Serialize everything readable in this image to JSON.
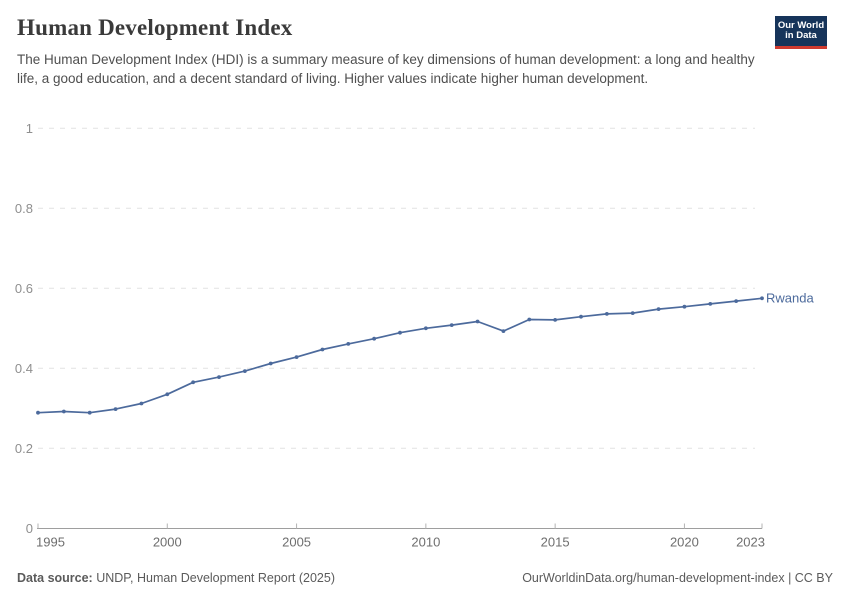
{
  "header": {
    "title": "Human Development Index",
    "subtitle": "The Human Development Index (HDI) is a summary measure of key dimensions of human development: a long and healthy life, a good education, and a decent standard of living. Higher values indicate higher human development.",
    "logo": {
      "line1": "Our World",
      "line2": "in Data"
    }
  },
  "footer": {
    "source_label": "Data source:",
    "source_text": " UNDP, Human Development Report (2025)",
    "citation": "OurWorldinData.org/human-development-index | CC BY"
  },
  "colors": {
    "series": "#4c6a9c",
    "gridline": "#e2e2e2",
    "y_tick_label": "#8f8f8f",
    "x_tick_label": "#6e6e6e",
    "axis_line": "#9e9e9e",
    "tick_mark": "#b3b3b3",
    "logo_navy": "#16345a",
    "logo_red": "#cf3a2f"
  },
  "chart_data": {
    "type": "line",
    "title": "Human Development Index",
    "xlabel": "",
    "ylabel": "",
    "x": [
      1995,
      1996,
      1997,
      1998,
      1999,
      2000,
      2001,
      2002,
      2003,
      2004,
      2005,
      2006,
      2007,
      2008,
      2009,
      2010,
      2011,
      2012,
      2013,
      2014,
      2015,
      2016,
      2017,
      2018,
      2019,
      2020,
      2021,
      2022,
      2023
    ],
    "series": [
      {
        "name": "Rwanda",
        "color": "#4c6a9c",
        "values": [
          0.289,
          0.292,
          0.289,
          0.298,
          0.312,
          0.335,
          0.365,
          0.378,
          0.393,
          0.412,
          0.428,
          0.447,
          0.461,
          0.474,
          0.489,
          0.5,
          0.508,
          0.517,
          0.493,
          0.522,
          0.521,
          0.529,
          0.536,
          0.538,
          0.548,
          0.554,
          0.561,
          0.568,
          0.575
        ]
      }
    ],
    "ylim": [
      0,
      1
    ],
    "yticks": [
      0,
      0.2,
      0.4,
      0.6,
      0.8,
      1
    ],
    "ytick_labels": [
      "0",
      "0.2",
      "0.4",
      "0.6",
      "0.8",
      "1"
    ],
    "xticks": [
      1995,
      2000,
      2005,
      2010,
      2015,
      2020,
      2023
    ],
    "grid": "horizontal dashed",
    "legend_position": "end-of-line label",
    "markers": true
  }
}
